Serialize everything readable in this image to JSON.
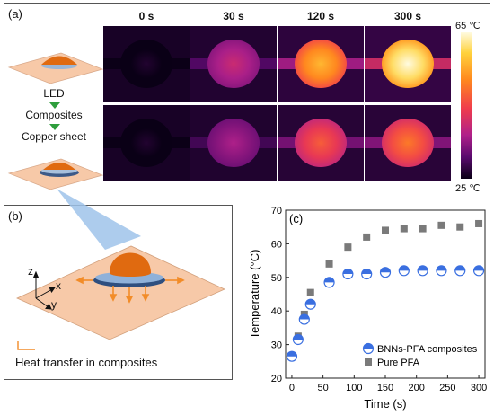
{
  "panel_a": {
    "label": "(a)",
    "times": [
      "0 s",
      "30 s",
      "120 s",
      "300 s"
    ],
    "steps": [
      "LED",
      "Composites",
      "Copper sheet"
    ],
    "colorbar": {
      "max": "65 ℃",
      "min": "25 ℃",
      "colors": [
        "#fffbe0",
        "#ffd23c",
        "#ff8a1e",
        "#f03c4c",
        "#b0208a",
        "#5a0a6e",
        "#0a0016"
      ]
    },
    "row_temps": {
      "top": [
        0.0,
        0.35,
        0.72,
        0.95
      ],
      "bottom": [
        0.0,
        0.28,
        0.52,
        0.58
      ]
    }
  },
  "panel_b": {
    "label": "(b)",
    "axes": {
      "z": "z",
      "x": "x",
      "y": "y"
    },
    "legend": "Heat transfer in composites",
    "colors": {
      "sheet": "#f7c9a8",
      "led": "#e06a10",
      "arrow": "#f28c28"
    }
  },
  "chart_data": {
    "type": "scatter",
    "label": "(c)",
    "xlabel": "Time (s)",
    "ylabel": "Temperature (°C)",
    "xlim": [
      -10,
      310
    ],
    "ylim": [
      20,
      70
    ],
    "xticks": [
      0,
      50,
      100,
      150,
      200,
      250,
      300
    ],
    "yticks": [
      20,
      30,
      40,
      50,
      60,
      70
    ],
    "legend_position": "bottom-right",
    "series": [
      {
        "name": "BNNs-PFA composites",
        "marker": "half-circle",
        "color": "#3a6fe0",
        "x": [
          0,
          10,
          20,
          30,
          60,
          90,
          120,
          150,
          180,
          210,
          240,
          270,
          300
        ],
        "y": [
          26.5,
          31.5,
          37.5,
          42,
          48.5,
          51,
          51,
          51.5,
          52,
          52,
          52,
          52,
          52
        ]
      },
      {
        "name": "Pure PFA",
        "marker": "square",
        "color": "#7a7a7a",
        "x": [
          0,
          10,
          20,
          30,
          60,
          90,
          120,
          150,
          180,
          210,
          240,
          270,
          300
        ],
        "y": [
          26.5,
          32.5,
          39,
          45.5,
          54,
          59,
          62,
          64,
          64.5,
          64.5,
          65.5,
          65,
          66
        ]
      }
    ]
  }
}
